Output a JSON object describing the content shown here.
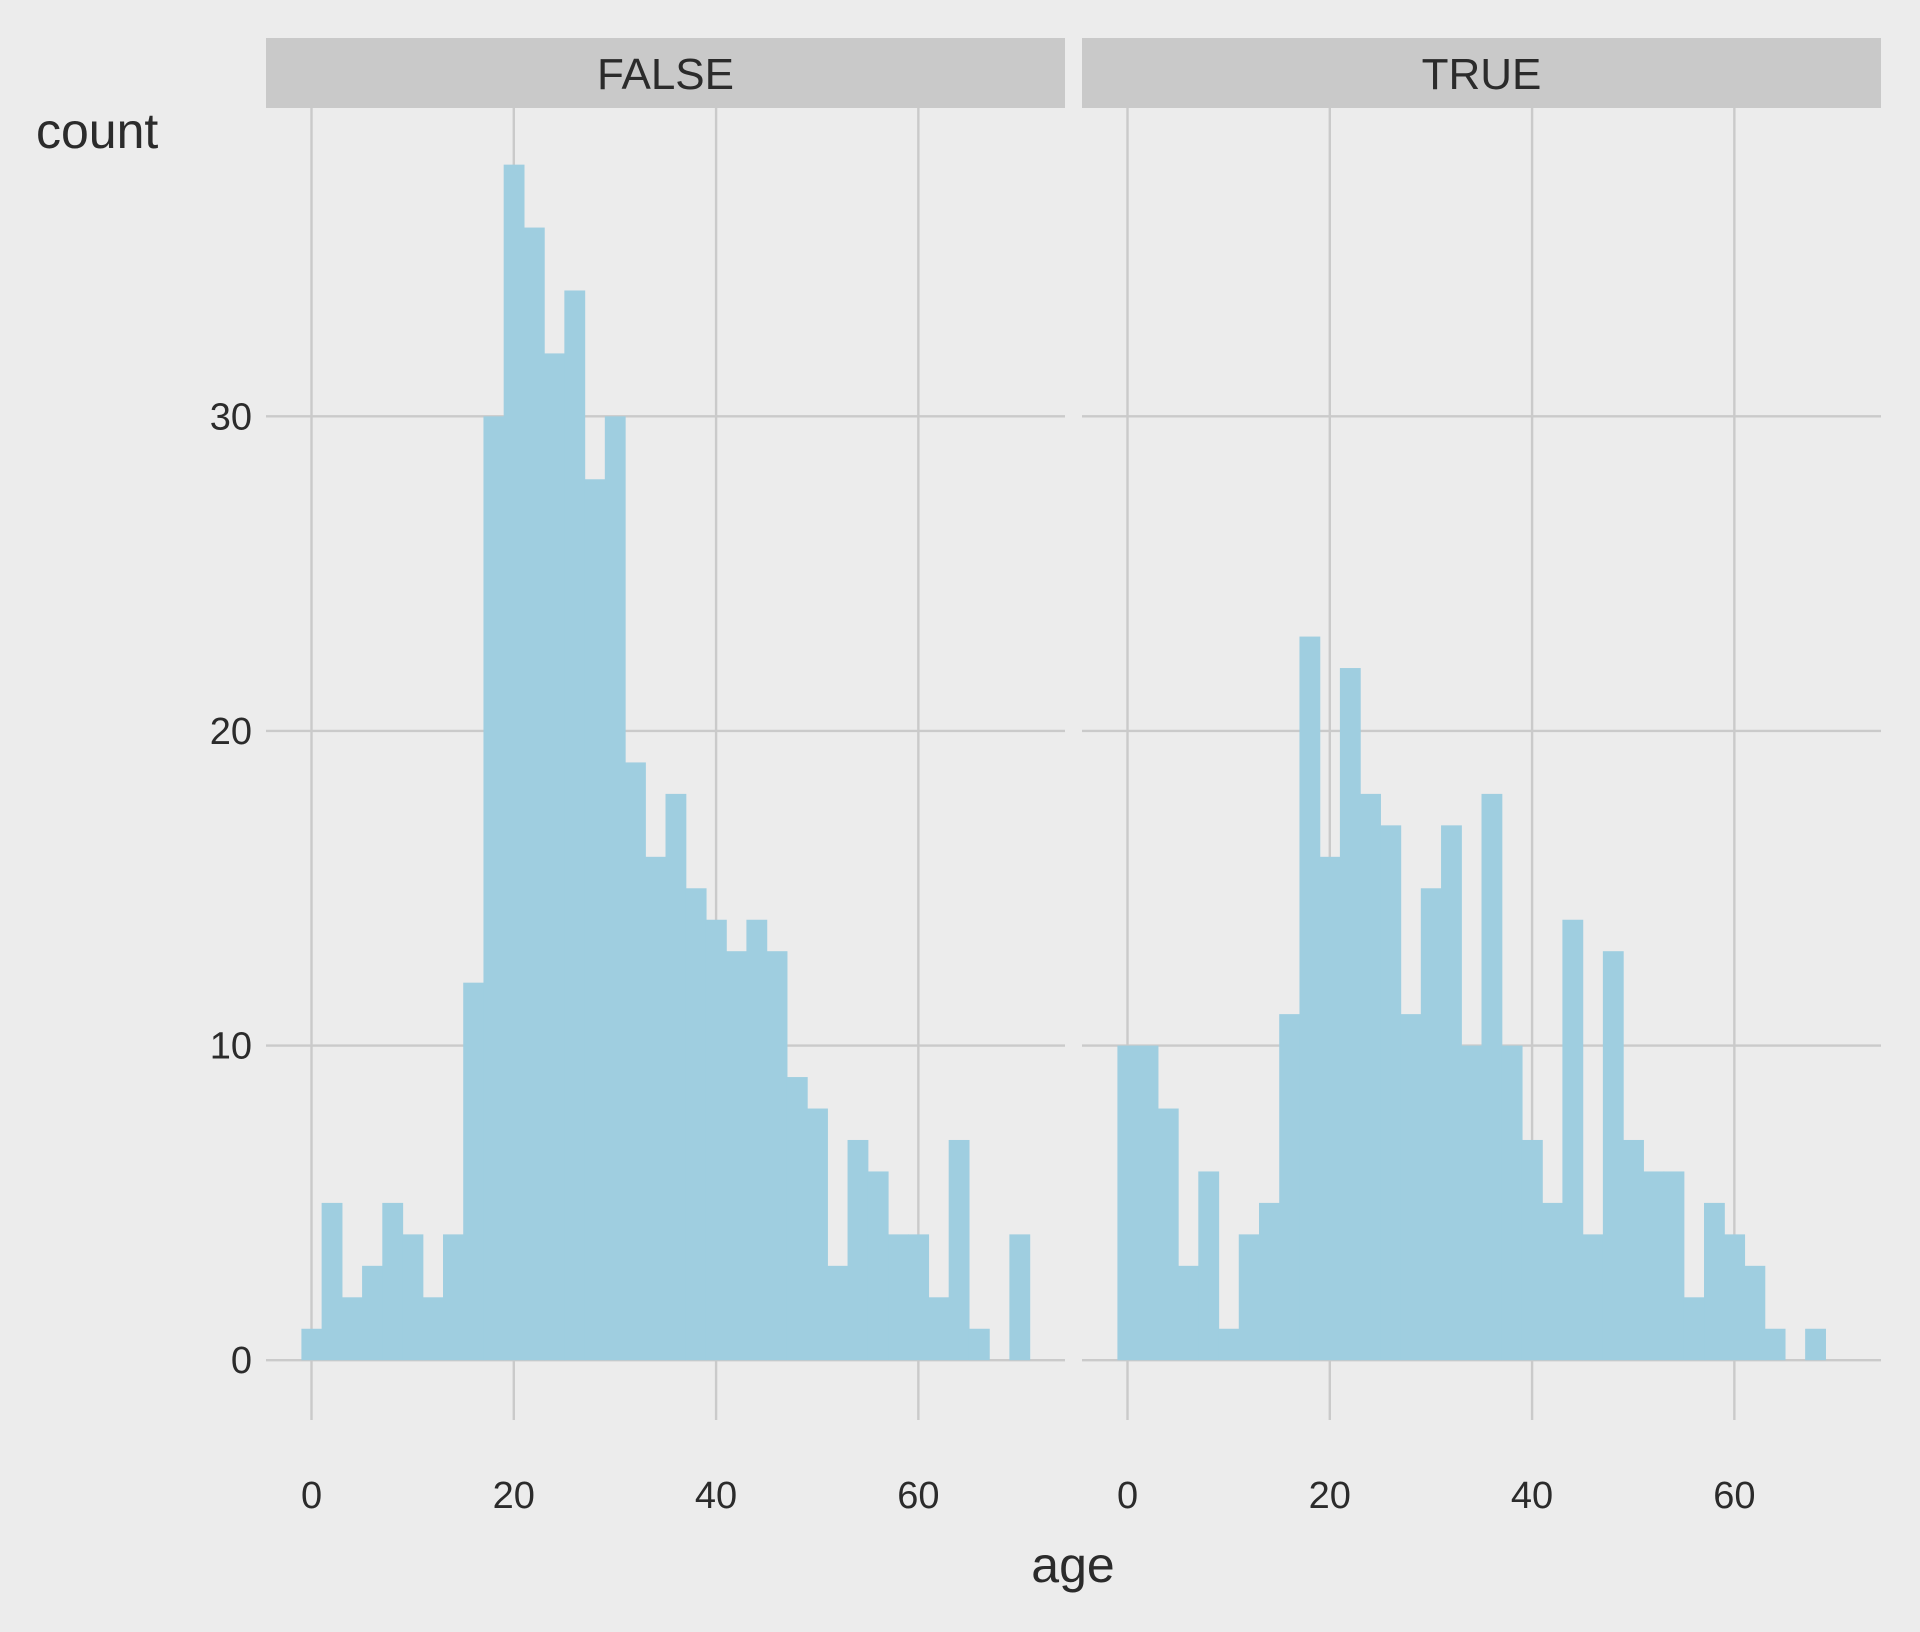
{
  "chart_data": {
    "type": "bar",
    "xlabel": "age",
    "ylabel": "count",
    "x_ticks": [
      0,
      20,
      40,
      60
    ],
    "y_ticks": [
      0,
      10,
      20,
      30
    ],
    "xlim": [
      -4.5,
      74.5
    ],
    "ylim": [
      -1.9,
      39.8
    ],
    "bin_width": 2,
    "bar_color": "#9fcee0",
    "panel_background": "#ececec",
    "strip_color": "#c9c9c9",
    "grid": true,
    "panels": [
      {
        "label": "FALSE",
        "bin_starts": [
          -1,
          1,
          3,
          5,
          7,
          9,
          11,
          13,
          15,
          17,
          19,
          21,
          23,
          25,
          27,
          29,
          31,
          33,
          35,
          37,
          39,
          41,
          43,
          45,
          47,
          49,
          51,
          53,
          55,
          57,
          59,
          61,
          63,
          65,
          67,
          69
        ],
        "counts": [
          1,
          5,
          2,
          3,
          5,
          4,
          2,
          4,
          12,
          30,
          38,
          36,
          32,
          34,
          28,
          30,
          19,
          16,
          18,
          15,
          14,
          13,
          14,
          13,
          9,
          8,
          3,
          7,
          6,
          4,
          4,
          2,
          7,
          1,
          0,
          4
        ]
      },
      {
        "label": "TRUE",
        "bin_starts": [
          -1,
          1,
          3,
          5,
          7,
          9,
          11,
          13,
          15,
          17,
          19,
          21,
          23,
          25,
          27,
          29,
          31,
          33,
          35,
          37,
          39,
          41,
          43,
          45,
          47,
          49,
          51,
          53,
          55,
          57,
          59,
          61,
          63,
          65,
          67
        ],
        "counts": [
          10,
          10,
          8,
          3,
          6,
          1,
          4,
          5,
          11,
          23,
          16,
          22,
          18,
          17,
          11,
          15,
          17,
          10,
          18,
          10,
          7,
          5,
          14,
          4,
          13,
          7,
          6,
          6,
          2,
          5,
          4,
          3,
          1,
          0,
          1
        ]
      }
    ]
  }
}
